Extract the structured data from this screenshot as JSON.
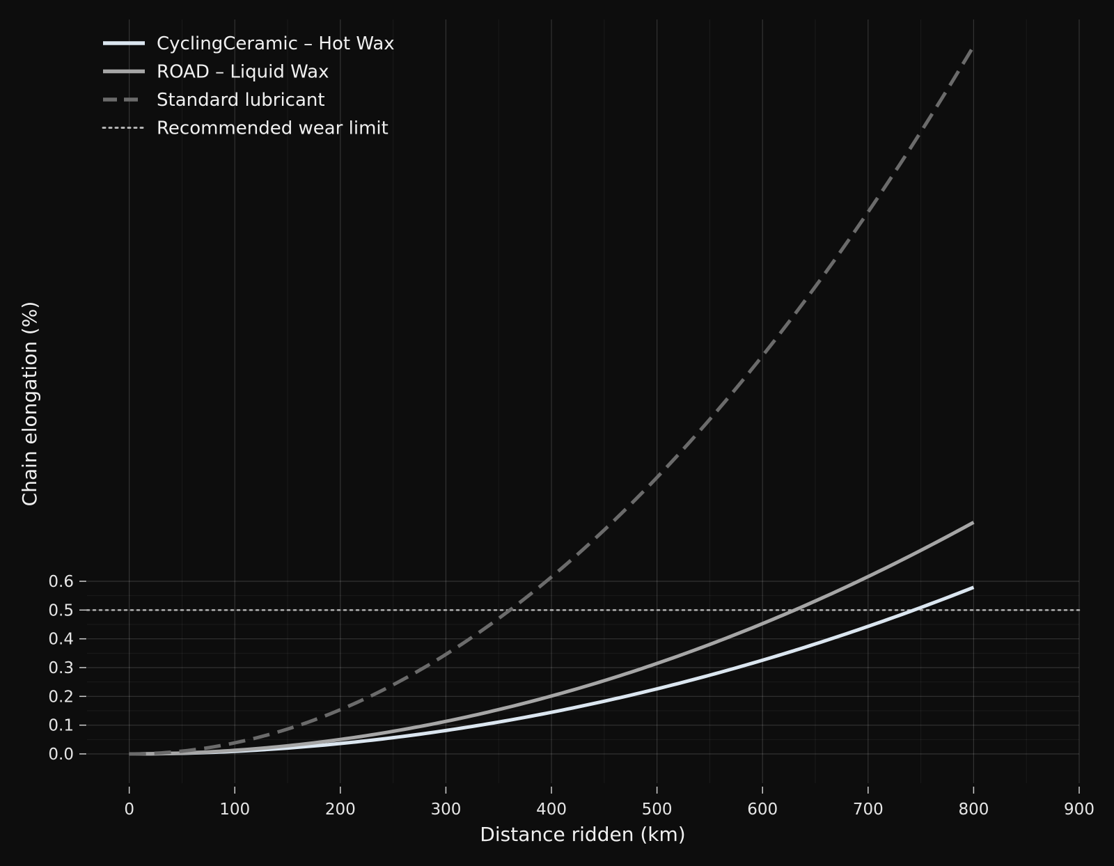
{
  "chart_data": {
    "type": "line",
    "title": "",
    "xlabel": "Distance ridden (km)",
    "ylabel": "Chain elongation (%)",
    "xlim": [
      -40,
      900
    ],
    "ylim": [
      -0.1,
      2.6
    ],
    "x_ticks": [
      0,
      100,
      200,
      300,
      400,
      500,
      600,
      700,
      800,
      900
    ],
    "x_tick_labels": [
      "0",
      "100",
      "200",
      "300",
      "400",
      "500",
      "600",
      "700",
      "800",
      "900"
    ],
    "y_ticks": [
      0.0,
      0.1,
      0.2,
      0.3,
      0.4,
      0.5,
      0.6
    ],
    "y_tick_labels": [
      "0.0",
      "0.1",
      "0.2",
      "0.3",
      "0.4",
      "0.5",
      "0.6"
    ],
    "grid": true,
    "legend_position": "top-left",
    "series": [
      {
        "name": "CyclingCeramic – Hot Wax",
        "style": "solid",
        "color": "#dbe6f0",
        "x": [
          0,
          100,
          200,
          300,
          400,
          500,
          600,
          700,
          800
        ],
        "values": [
          0.0,
          0.009,
          0.036,
          0.081,
          0.145,
          0.226,
          0.326,
          0.443,
          0.579
        ]
      },
      {
        "name": "ROAD – Liquid Wax",
        "style": "solid",
        "color": "#a6a6a6",
        "x": [
          0,
          100,
          200,
          300,
          400,
          500,
          600,
          700,
          800
        ],
        "values": [
          0.0,
          0.0126,
          0.0503,
          0.113,
          0.201,
          0.315,
          0.453,
          0.617,
          0.805
        ]
      },
      {
        "name": "Standard lubricant",
        "style": "dashed",
        "color": "#6b6b6b",
        "x": [
          0,
          100,
          200,
          300,
          400,
          500,
          600,
          700,
          800
        ],
        "values": [
          0.0,
          0.038,
          0.154,
          0.346,
          0.615,
          0.961,
          1.384,
          1.884,
          2.46
        ]
      },
      {
        "name": "Recommended wear limit",
        "style": "dotted",
        "color": "#b3b3b3",
        "x": [
          -40,
          900
        ],
        "values": [
          0.5,
          0.5
        ]
      }
    ]
  }
}
